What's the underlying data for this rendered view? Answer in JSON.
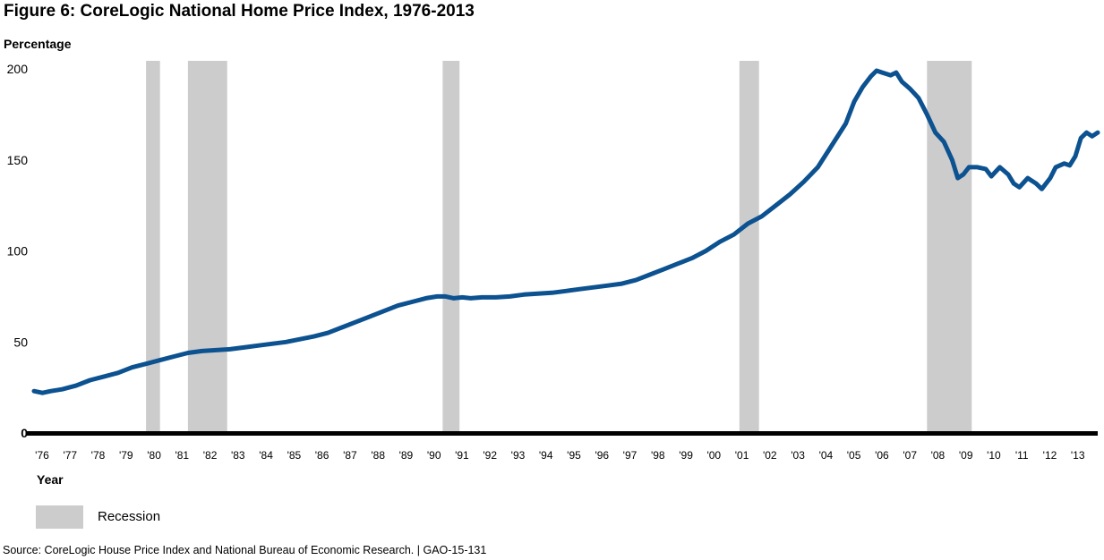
{
  "figure": {
    "title": "Figure 6: CoreLogic National Home Price Index, 1976-2013",
    "source": "Source: CoreLogic House Price Index and National Bureau of Economic Research.  |  GAO-15-131"
  },
  "legend": {
    "recession_label": "Recession"
  },
  "colors": {
    "line": "#0c5190",
    "recession": "#cccccc",
    "axis": "#000000"
  },
  "chart_data": {
    "type": "line",
    "title": "Figure 6: CoreLogic National Home Price Index, 1976-2013",
    "ylabel": "Percentage",
    "xlabel": "Year",
    "ylim": [
      0,
      200
    ],
    "xlim": [
      1976,
      2014
    ],
    "yticks": [
      0,
      50,
      100,
      150,
      200
    ],
    "xtick_labels": [
      "'76",
      "'77",
      "'78",
      "'79",
      "'80",
      "'81",
      "'82",
      "'83",
      "'84",
      "'85",
      "'86",
      "'87",
      "'88",
      "'89",
      "'90",
      "'91",
      "'92",
      "'93",
      "'94",
      "'95",
      "'96",
      "'97",
      "'98",
      "'99",
      "'00",
      "'01",
      "'02",
      "'03",
      "'04",
      "'05",
      "'06",
      "'07",
      "'08",
      "'09",
      "'10",
      "'11",
      "'12",
      "'13"
    ],
    "recessions": [
      [
        1980.0,
        1980.5
      ],
      [
        1981.5,
        1982.9
      ],
      [
        1990.6,
        1991.2
      ],
      [
        2001.2,
        2001.9
      ],
      [
        2007.9,
        2009.5
      ]
    ],
    "series": [
      {
        "name": "CoreLogic National Home Price Index",
        "x": [
          1976.0,
          1976.3,
          1976.6,
          1977.0,
          1977.5,
          1978.0,
          1978.5,
          1979.0,
          1979.5,
          1980.0,
          1980.5,
          1981.0,
          1981.5,
          1982.0,
          1982.5,
          1983.0,
          1983.5,
          1984.0,
          1984.5,
          1985.0,
          1985.5,
          1986.0,
          1986.5,
          1987.0,
          1987.5,
          1988.0,
          1988.5,
          1989.0,
          1989.5,
          1990.0,
          1990.4,
          1990.7,
          1991.0,
          1991.3,
          1991.6,
          1992.0,
          1992.5,
          1993.0,
          1993.5,
          1994.0,
          1994.5,
          1995.0,
          1995.5,
          1996.0,
          1996.5,
          1997.0,
          1997.5,
          1998.0,
          1998.5,
          1999.0,
          1999.5,
          2000.0,
          2000.5,
          2001.0,
          2001.5,
          2002.0,
          2002.5,
          2003.0,
          2003.5,
          2004.0,
          2004.5,
          2005.0,
          2005.3,
          2005.6,
          2005.9,
          2006.1,
          2006.3,
          2006.6,
          2006.8,
          2007.0,
          2007.3,
          2007.6,
          2007.9,
          2008.2,
          2008.5,
          2008.8,
          2009.0,
          2009.2,
          2009.4,
          2009.7,
          2010.0,
          2010.2,
          2010.5,
          2010.8,
          2011.0,
          2011.2,
          2011.5,
          2011.8,
          2012.0,
          2012.3,
          2012.5,
          2012.8,
          2013.0,
          2013.2,
          2013.4,
          2013.6,
          2013.8,
          2014.0
        ],
        "values": [
          23,
          22,
          23,
          24,
          26,
          29,
          31,
          33,
          36,
          38,
          40,
          42,
          44,
          45,
          45.5,
          46,
          47,
          48,
          49,
          50,
          51.5,
          53,
          55,
          58,
          61,
          64,
          67,
          70,
          72,
          74,
          75,
          75,
          74,
          74.5,
          74,
          74.5,
          74.5,
          75,
          76,
          76.5,
          77,
          78,
          79,
          80,
          81,
          82,
          84,
          87,
          90,
          93,
          96,
          100,
          105,
          109,
          115,
          119,
          125,
          131,
          138,
          146,
          158,
          170,
          182,
          190,
          196,
          199,
          198,
          196.5,
          198,
          193,
          189,
          184,
          175,
          165,
          160,
          150,
          140,
          142,
          146,
          146,
          145,
          141,
          146,
          142,
          137,
          135,
          140,
          137,
          134,
          140,
          146,
          148,
          147,
          152,
          162,
          165,
          163,
          165
        ]
      }
    ]
  }
}
